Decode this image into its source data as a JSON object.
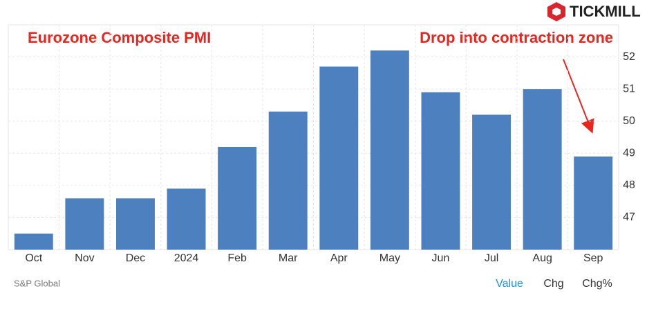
{
  "brand": "TICKMILL",
  "source": "S&P Global",
  "tabs": [
    "Value",
    "Chg",
    "Chg%"
  ],
  "chart_data": {
    "type": "bar",
    "title": "Eurozone Composite PMI",
    "annotation": "Drop into contraction zone",
    "categories": [
      "Oct",
      "Nov",
      "Dec",
      "2024",
      "Feb",
      "Mar",
      "Apr",
      "May",
      "Jun",
      "Jul",
      "Aug",
      "Sep"
    ],
    "values": [
      46.5,
      47.6,
      47.6,
      47.9,
      49.2,
      50.3,
      51.7,
      52.2,
      50.9,
      50.2,
      51.0,
      48.9
    ],
    "color": "#4d80be",
    "ylim": [
      46,
      53
    ],
    "yticks": [
      47,
      48,
      49,
      50,
      51,
      52
    ],
    "grid": true
  }
}
